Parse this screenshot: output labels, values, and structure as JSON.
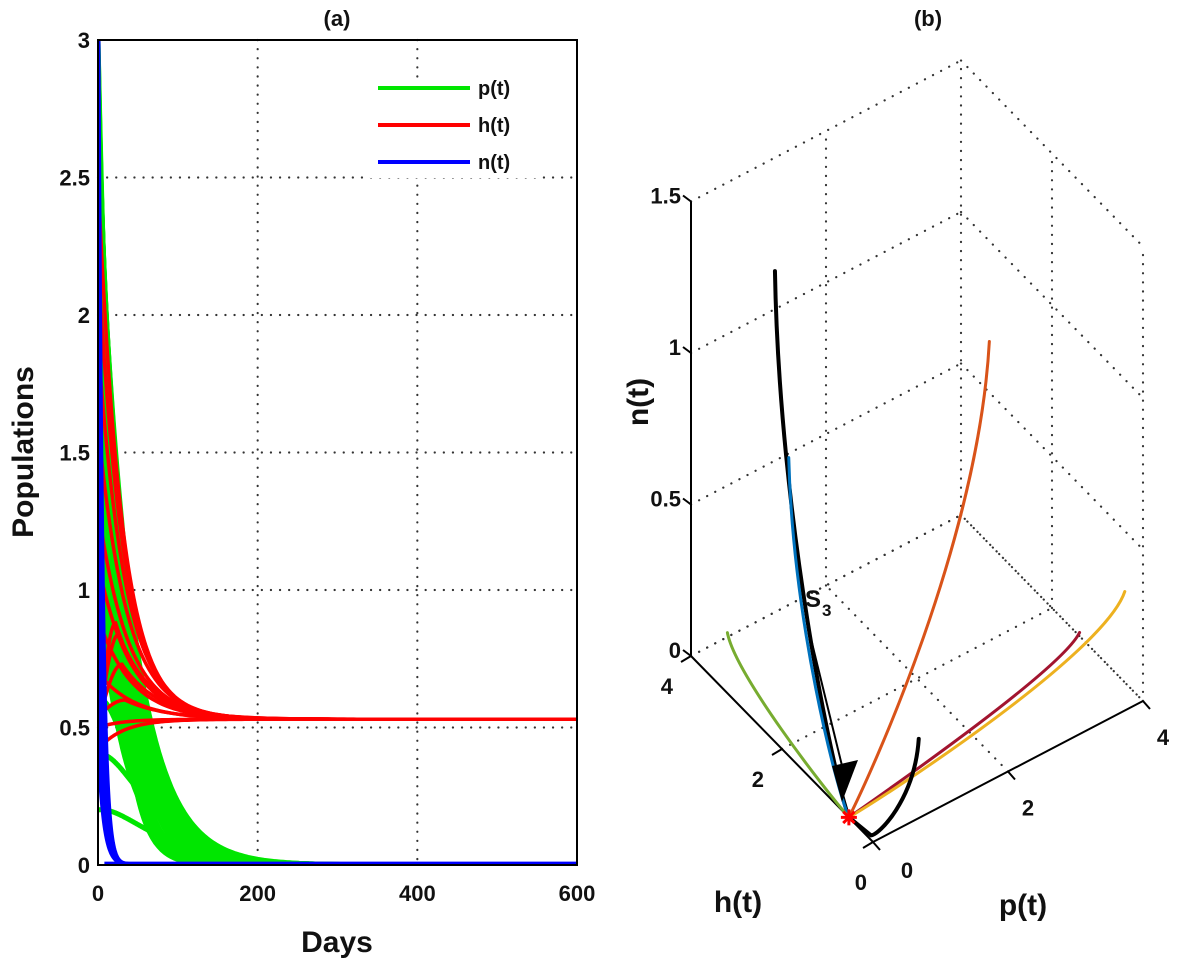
{
  "chart_data": [
    {
      "panel": "a",
      "type": "line",
      "title": "(a)",
      "xlabel": "Days",
      "ylabel": "Populations",
      "xlim": [
        0,
        600
      ],
      "ylim": [
        0,
        3
      ],
      "xticks": [
        0,
        200,
        400,
        600
      ],
      "xtick_labels": [
        "0",
        "200",
        "400",
        "600"
      ],
      "yticks": [
        0,
        0.5,
        1,
        1.5,
        2,
        2.5,
        3
      ],
      "ytick_labels": [
        "0",
        "0.5",
        "1",
        "1.5",
        "2",
        "2.5",
        "3"
      ],
      "grid": true,
      "legend": {
        "position": "top-right",
        "entries": [
          {
            "label": "p(t)",
            "color": "#00e600"
          },
          {
            "label": "h(t)",
            "color": "#ff0000"
          },
          {
            "label": "n(t)",
            "color": "#0000ff"
          }
        ]
      },
      "description": "Many trajectories from different initial conditions; p(t) and n(t) decay to 0, h(t) converges to about 0.53",
      "series": [
        {
          "name": "p(t)",
          "color": "#00e600",
          "equilibrium": 0,
          "initial_values": [
            3.0,
            2.6,
            2.2,
            1.9,
            1.6,
            1.4,
            1.2,
            1.0,
            0.8,
            0.6,
            0.4,
            0.2
          ],
          "decay_scale_days": [
            22,
            24,
            26,
            28,
            30,
            32,
            34,
            36,
            28,
            30,
            40,
            45
          ]
        },
        {
          "name": "h(t)",
          "color": "#ff0000",
          "equilibrium": 0.53,
          "initial_values": [
            2.5,
            2.2,
            1.9,
            1.6,
            1.3,
            1.1,
            0.9,
            0.7,
            0.5,
            0.42
          ],
          "peak_values_for_low_starts": [
            0.88,
            0.84,
            0.73,
            0.6
          ],
          "decay_scale_days": [
            30,
            32,
            34,
            36,
            38,
            40,
            42,
            45
          ]
        },
        {
          "name": "n(t)",
          "color": "#0000ff",
          "equilibrium": 0,
          "initial_values": [
            3.0,
            2.0,
            1.0,
            0.5
          ],
          "decay_scale_days": [
            5,
            5,
            6,
            7
          ]
        }
      ]
    },
    {
      "panel": "b",
      "type": "line3d",
      "title": "(b)",
      "xlabel": "p(t)",
      "ylabel": "h(t)",
      "zlabel": "n(t)",
      "xlim": [
        0,
        4
      ],
      "ylim": [
        0,
        4
      ],
      "zlim": [
        0,
        1.5
      ],
      "xticks": [
        0,
        2,
        4
      ],
      "xtick_labels": [
        "0",
        "2",
        "4"
      ],
      "yticks": [
        0,
        2,
        4
      ],
      "ytick_labels": [
        "0",
        "2",
        "4"
      ],
      "zticks": [
        0,
        0.5,
        1,
        1.5
      ],
      "ztick_labels": [
        "0",
        "0.5",
        "1",
        "1.5"
      ],
      "grid": true,
      "equilibrium": {
        "label": "S",
        "subscript": "3",
        "p": 0,
        "h": 0.53,
        "n": 0,
        "marker_color": "#ff0000"
      },
      "trajectories": [
        {
          "name": "black",
          "color": "#000000",
          "start": {
            "p": 0.3,
            "h": 2.6,
            "n": 1.45
          }
        },
        {
          "name": "blue",
          "color": "#0072bd",
          "start": {
            "p": 0.1,
            "h": 2.0,
            "n": 0.95
          }
        },
        {
          "name": "orange-red",
          "color": "#d95319",
          "start": {
            "p": 2.6,
            "h": 1.3,
            "n": 1.15
          }
        },
        {
          "name": "green",
          "color": "#77ac30",
          "start": {
            "p": 0.0,
            "h": 3.2,
            "n": 0.2
          }
        },
        {
          "name": "dark-red",
          "color": "#a2142f",
          "start": {
            "p": 3.6,
            "h": 0.8,
            "n": 0.15
          }
        },
        {
          "name": "yellow",
          "color": "#edb120",
          "start": {
            "p": 4.0,
            "h": 0.4,
            "n": 0.3
          }
        },
        {
          "name": "black-hook",
          "color": "#000000",
          "start": {
            "p": 0.5,
            "h": 0.0,
            "n": 0.15
          }
        }
      ]
    }
  ]
}
